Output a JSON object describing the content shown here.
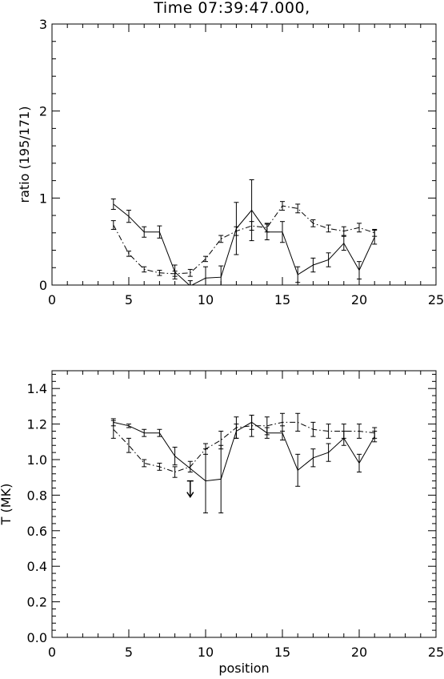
{
  "chart_data": [
    {
      "type": "line",
      "title": "Time 07:39:47.000,",
      "xlabel": "",
      "ylabel": "ratio (195/171)",
      "xlim": [
        0,
        25
      ],
      "ylim": [
        0,
        3
      ],
      "xticks": [
        0,
        5,
        10,
        15,
        20,
        25
      ],
      "yticks": [
        0,
        1,
        2,
        3
      ],
      "grid": false,
      "series": [
        {
          "style": "solid",
          "x": [
            4,
            5,
            6,
            7,
            8,
            9,
            10,
            11,
            12,
            13,
            14,
            15,
            16,
            17,
            18,
            19,
            20,
            21
          ],
          "y": [
            0.93,
            0.79,
            0.61,
            0.61,
            0.15,
            -0.01,
            0.08,
            0.09,
            0.65,
            0.86,
            0.61,
            0.61,
            0.12,
            0.23,
            0.29,
            0.48,
            0.17,
            0.55
          ],
          "yerr": [
            0.06,
            0.07,
            0.06,
            0.07,
            0.08,
            0.06,
            0.13,
            0.13,
            0.3,
            0.35,
            0.09,
            0.12,
            0.09,
            0.08,
            0.08,
            0.08,
            0.1,
            0.08
          ]
        },
        {
          "style": "dash-dot",
          "x": [
            4,
            5,
            6,
            7,
            8,
            9,
            10,
            11,
            12,
            13,
            14,
            15,
            16,
            17,
            18,
            19,
            20,
            21
          ],
          "y": [
            0.69,
            0.36,
            0.18,
            0.14,
            0.13,
            0.14,
            0.3,
            0.53,
            0.62,
            0.68,
            0.66,
            0.91,
            0.88,
            0.71,
            0.65,
            0.62,
            0.66,
            0.6
          ],
          "yerr": [
            0.05,
            0.03,
            0.03,
            0.03,
            0.03,
            0.04,
            0.03,
            0.04,
            0.05,
            0.05,
            0.05,
            0.05,
            0.05,
            0.04,
            0.04,
            0.05,
            0.05,
            0.04
          ]
        }
      ]
    },
    {
      "type": "line",
      "title": "",
      "xlabel": "position",
      "ylabel": "T (MK)",
      "xlim": [
        0,
        25
      ],
      "ylim": [
        0,
        1.5
      ],
      "xticks": [
        0,
        5,
        10,
        15,
        20,
        25
      ],
      "yticks": [
        0,
        0.2,
        0.4,
        0.6,
        0.8,
        1,
        1.2,
        1.4
      ],
      "ytick_labels": [
        "0.0",
        "0.2",
        "0.4",
        "0.6",
        "0.8",
        "1.0",
        "1.2",
        "1.4"
      ],
      "grid": false,
      "upper_limit_arrow": {
        "x": 9,
        "y": 0.88
      },
      "series": [
        {
          "style": "solid",
          "x": [
            4,
            5,
            6,
            7,
            8,
            10,
            11,
            12,
            13,
            14,
            15,
            16,
            17,
            18,
            19,
            20,
            21
          ],
          "y": [
            1.21,
            1.19,
            1.15,
            1.15,
            1.02,
            0.88,
            0.89,
            1.16,
            1.21,
            1.15,
            1.15,
            0.94,
            1.01,
            1.04,
            1.12,
            0.98,
            1.13
          ],
          "yerr": [
            0.02,
            0.01,
            0.02,
            0.02,
            0.05,
            0.18,
            0.19,
            0.04,
            0.04,
            0.03,
            0.04,
            0.09,
            0.05,
            0.05,
            0.04,
            0.05,
            0.03
          ]
        },
        {
          "style": "dash-dot",
          "x": [
            4,
            5,
            6,
            7,
            8,
            9,
            10,
            11,
            12,
            13,
            14,
            15,
            16,
            17,
            18,
            19,
            20,
            21
          ],
          "y": [
            1.17,
            1.08,
            0.98,
            0.96,
            0.93,
            0.96,
            1.06,
            1.11,
            1.18,
            1.19,
            1.19,
            1.21,
            1.21,
            1.17,
            1.16,
            1.16,
            1.16,
            1.15
          ],
          "yerr": [
            0.05,
            0.04,
            0.02,
            0.02,
            0.03,
            0.03,
            0.03,
            0.05,
            0.06,
            0.06,
            0.05,
            0.05,
            0.05,
            0.04,
            0.04,
            0.04,
            0.04,
            0.03
          ]
        }
      ]
    }
  ]
}
